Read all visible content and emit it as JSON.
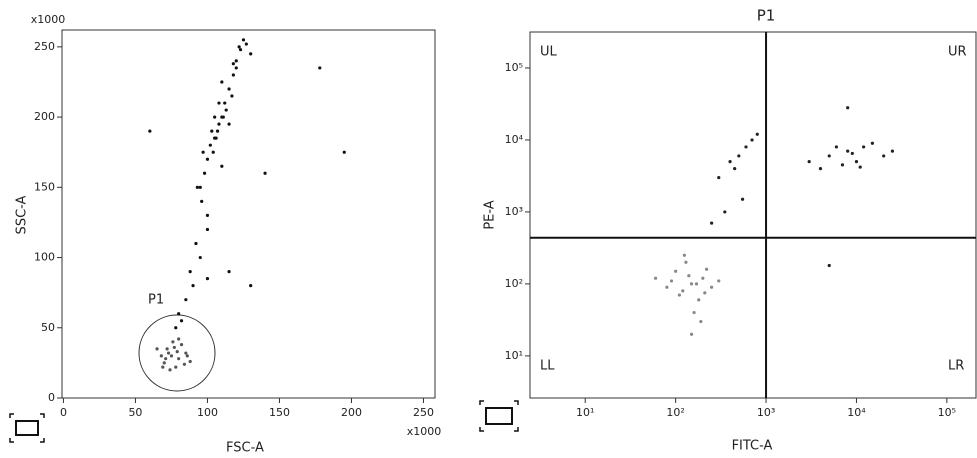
{
  "chart_data": [
    {
      "type": "scatter",
      "xlabel": "FSC-A",
      "ylabel": "SSC-A",
      "x_multiplier": "x1000",
      "y_multiplier": "x1000",
      "gate_label": "P1",
      "xlim": [
        -1,
        258
      ],
      "ylim": [
        0,
        262
      ],
      "xticks": [
        0,
        50,
        100,
        150,
        200,
        250
      ],
      "yticks": [
        0,
        50,
        100,
        150,
        200,
        250
      ],
      "series": [
        {
          "color": "#111111",
          "x": [
            95,
            100,
            105,
            108,
            110,
            112,
            115,
            118,
            120,
            122,
            125,
            102,
            98,
            107,
            113,
            117,
            104,
            110,
            96,
            100,
            92,
            88,
            90,
            95,
            85,
            100,
            105,
            110,
            80,
            78,
            82,
            100,
            120,
            130,
            140,
            115,
            108,
            103,
            97,
            93,
            123,
            118,
            127,
            111,
            106,
            178,
            195,
            115,
            130,
            60
          ],
          "values": [
            150,
            170,
            185,
            195,
            200,
            210,
            220,
            230,
            240,
            250,
            255,
            180,
            160,
            190,
            205,
            215,
            175,
            165,
            140,
            130,
            110,
            90,
            80,
            100,
            70,
            120,
            200,
            225,
            60,
            50,
            55,
            85,
            235,
            245,
            160,
            195,
            210,
            190,
            175,
            150,
            248,
            238,
            252,
            200,
            185,
            235,
            175,
            90,
            80,
            190
          ]
        },
        {
          "color": "#555555",
          "x": [
            70,
            75,
            80,
            72,
            78,
            85,
            68,
            76,
            82,
            74,
            88,
            65,
            79,
            71,
            84,
            77,
            73,
            80,
            69,
            86
          ],
          "values": [
            25,
            30,
            28,
            35,
            22,
            32,
            30,
            40,
            38,
            20,
            26,
            35,
            33,
            28,
            24,
            36,
            32,
            42,
            22,
            30
          ]
        }
      ]
    },
    {
      "type": "scatter",
      "title": "P1",
      "xlabel": "FITC-A",
      "ylabel": "PE-A",
      "log": true,
      "quadrant_labels": [
        "UL",
        "UR",
        "LL",
        "LR"
      ],
      "quadrant_x": 1000,
      "quadrant_y": 437,
      "xlim": [
        2.45,
        210000
      ],
      "ylim": [
        2.6,
        316000
      ],
      "xticks": [
        {
          "value": 10,
          "label": "10¹"
        },
        {
          "value": 100,
          "label": "10²"
        },
        {
          "value": 1000,
          "label": "10³"
        },
        {
          "value": 10000,
          "label": "10⁴"
        },
        {
          "value": 100000,
          "label": "10⁵"
        }
      ],
      "yticks": [
        {
          "value": 10,
          "label": "10¹"
        },
        {
          "value": 100,
          "label": "10²"
        },
        {
          "value": 1000,
          "label": "10³"
        },
        {
          "value": 10000,
          "label": "10⁴"
        },
        {
          "value": 100000,
          "label": "10⁵"
        }
      ],
      "series": [
        {
          "color": "#888888",
          "x": [
            150,
            120,
            200,
            100,
            180,
            130,
            250,
            90,
            160,
            140,
            220,
            110,
            170,
            80,
            190,
            60,
            300,
            150,
            125,
            210
          ],
          "values": [
            100,
            80,
            120,
            150,
            60,
            200,
            90,
            110,
            40,
            130,
            160,
            70,
            100,
            90,
            30,
            120,
            110,
            20,
            250,
            75
          ]
        },
        {
          "color": "#222222",
          "x": [
            5000,
            8000,
            10000,
            12000,
            7000,
            3000,
            20000,
            15000,
            9000,
            6000,
            4000,
            25000,
            11000,
            8000,
            5000,
            300,
            400,
            500,
            600,
            700,
            350,
            250,
            800,
            450,
            550
          ],
          "values": [
            6000,
            7000,
            5000,
            8000,
            4500,
            5000,
            6000,
            9000,
            6500,
            8000,
            4000,
            7000,
            4200,
            28000,
            180,
            3000,
            5000,
            6000,
            8000,
            10000,
            1000,
            700,
            12000,
            4000,
            1500
          ]
        }
      ]
    }
  ]
}
